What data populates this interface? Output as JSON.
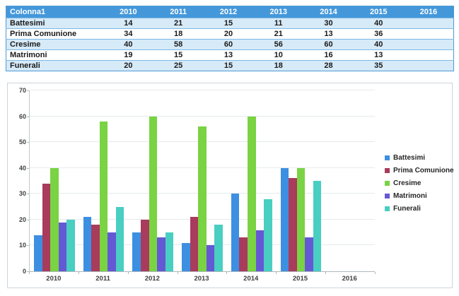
{
  "table": {
    "columns": [
      "Colonna1",
      "2010",
      "2011",
      "2012",
      "2013",
      "2014",
      "2015",
      "2016"
    ],
    "rows": [
      {
        "label": "Battesimi",
        "values": [
          "14",
          "21",
          "15",
          "11",
          "30",
          "40",
          ""
        ]
      },
      {
        "label": "Prima Comunione",
        "values": [
          "34",
          "18",
          "20",
          "21",
          "13",
          "36",
          ""
        ]
      },
      {
        "label": "Cresime",
        "values": [
          "40",
          "58",
          "60",
          "56",
          "60",
          "40",
          ""
        ]
      },
      {
        "label": "Matrimoni",
        "values": [
          "19",
          "15",
          "13",
          "10",
          "16",
          "13",
          ""
        ]
      },
      {
        "label": "Funerali",
        "values": [
          "20",
          "25",
          "15",
          "18",
          "28",
          "35",
          ""
        ]
      }
    ]
  },
  "chart_data": {
    "type": "bar",
    "title": "",
    "xlabel": "",
    "ylabel": "",
    "categories": [
      "2010",
      "2011",
      "2012",
      "2013",
      "2014",
      "2015",
      "2016"
    ],
    "series": [
      {
        "name": "Battesimi",
        "color": "#3d8fe2",
        "values": [
          14,
          21,
          15,
          11,
          30,
          40,
          null
        ]
      },
      {
        "name": "Prima Comunione",
        "color": "#a93b5c",
        "values": [
          34,
          18,
          20,
          21,
          13,
          36,
          null
        ]
      },
      {
        "name": "Cresime",
        "color": "#79d343",
        "values": [
          40,
          58,
          60,
          56,
          60,
          40,
          null
        ]
      },
      {
        "name": "Matrimoni",
        "color": "#6558d4",
        "values": [
          19,
          15,
          13,
          10,
          16,
          13,
          null
        ]
      },
      {
        "name": "Funerali",
        "color": "#49cec2",
        "values": [
          20,
          25,
          15,
          18,
          28,
          35,
          null
        ]
      }
    ],
    "ylim": [
      0,
      70
    ],
    "ytick_step": 10,
    "yticks": [
      "0",
      "10",
      "20",
      "30",
      "40",
      "50",
      "60",
      "70"
    ],
    "grid": true,
    "legend_position": "right"
  },
  "colors": {
    "header_bg": "#4498da",
    "band_bg": "#d6eaf8",
    "outer_border": "#4e9bd6",
    "row_border": "#7fb8e4",
    "frame_border": "#cbd5dc",
    "grid": "#e5eaed",
    "axis": "#bfc8cc",
    "axis_x": "#aeb8bd",
    "label": "#3f3f3f"
  }
}
